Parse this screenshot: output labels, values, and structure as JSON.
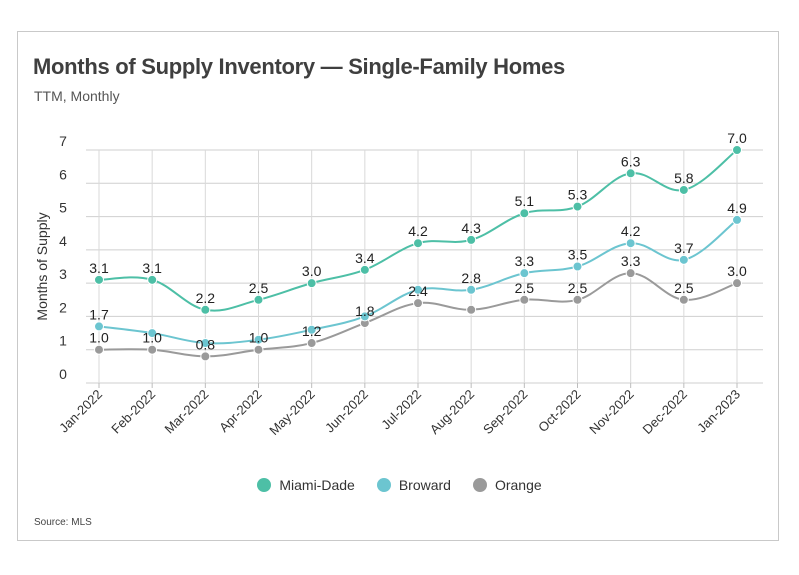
{
  "title": "Months of Supply Inventory — Single-Family Homes",
  "subtitle": "TTM, Monthly",
  "source": "Source:  MLS",
  "chart_data": {
    "type": "line",
    "title": "Months of Supply Inventory — Single-Family Homes",
    "subtitle": "TTM, Monthly",
    "xlabel": "",
    "ylabel": "Months of Supply",
    "ylim": [
      0,
      7
    ],
    "yticks": [
      "0",
      "1",
      "2",
      "3",
      "4",
      "5",
      "6",
      "7"
    ],
    "grid": true,
    "legend_position": "bottom",
    "categories": [
      "Jan-2022",
      "Feb-2022",
      "Mar-2022",
      "Apr-2022",
      "May-2022",
      "Jun-2022",
      "Jul-2022",
      "Aug-2022",
      "Sep-2022",
      "Oct-2022",
      "Nov-2022",
      "Dec-2022",
      "Jan-2023"
    ],
    "series": [
      {
        "name": "Miami-Dade",
        "color": "#4dbfa6",
        "values": [
          3.1,
          3.1,
          2.2,
          2.5,
          3.0,
          3.4,
          4.2,
          4.3,
          5.1,
          5.3,
          6.3,
          5.8,
          7.0
        ],
        "labels": [
          "3.1",
          "3.1",
          "2.2",
          "2.5",
          "3.0",
          "3.4",
          "4.2",
          "4.3",
          "5.1",
          "5.3",
          "6.3",
          "5.8",
          "7.0"
        ],
        "show_labels": [
          true,
          true,
          true,
          true,
          true,
          true,
          true,
          true,
          true,
          true,
          true,
          true,
          true
        ]
      },
      {
        "name": "Broward",
        "color": "#6cc5d0",
        "values": [
          1.7,
          1.5,
          1.2,
          1.3,
          1.6,
          2.0,
          2.8,
          2.8,
          3.3,
          3.5,
          4.2,
          3.7,
          4.9
        ],
        "labels": [
          "1.7",
          "1.5",
          "1.2",
          "1.3",
          "1.6",
          "2.0",
          "2.8",
          "2.8",
          "3.3",
          "3.5",
          "4.2",
          "3.7",
          "4.9"
        ],
        "show_labels": [
          true,
          false,
          false,
          false,
          false,
          false,
          false,
          true,
          true,
          true,
          true,
          true,
          true
        ]
      },
      {
        "name": "Orange",
        "color": "#9a9a9a",
        "values": [
          1.0,
          1.0,
          0.8,
          1.0,
          1.2,
          1.8,
          2.4,
          2.2,
          2.5,
          2.5,
          3.3,
          2.5,
          3.0
        ],
        "labels": [
          "1.0",
          "1.0",
          "0.8",
          "1.0",
          "1.2",
          "1.8",
          "2.4",
          "2.2",
          "2.5",
          "2.5",
          "3.3",
          "2.5",
          "3.0"
        ],
        "show_labels": [
          true,
          true,
          true,
          true,
          true,
          true,
          true,
          false,
          true,
          true,
          true,
          true,
          true
        ]
      }
    ]
  }
}
